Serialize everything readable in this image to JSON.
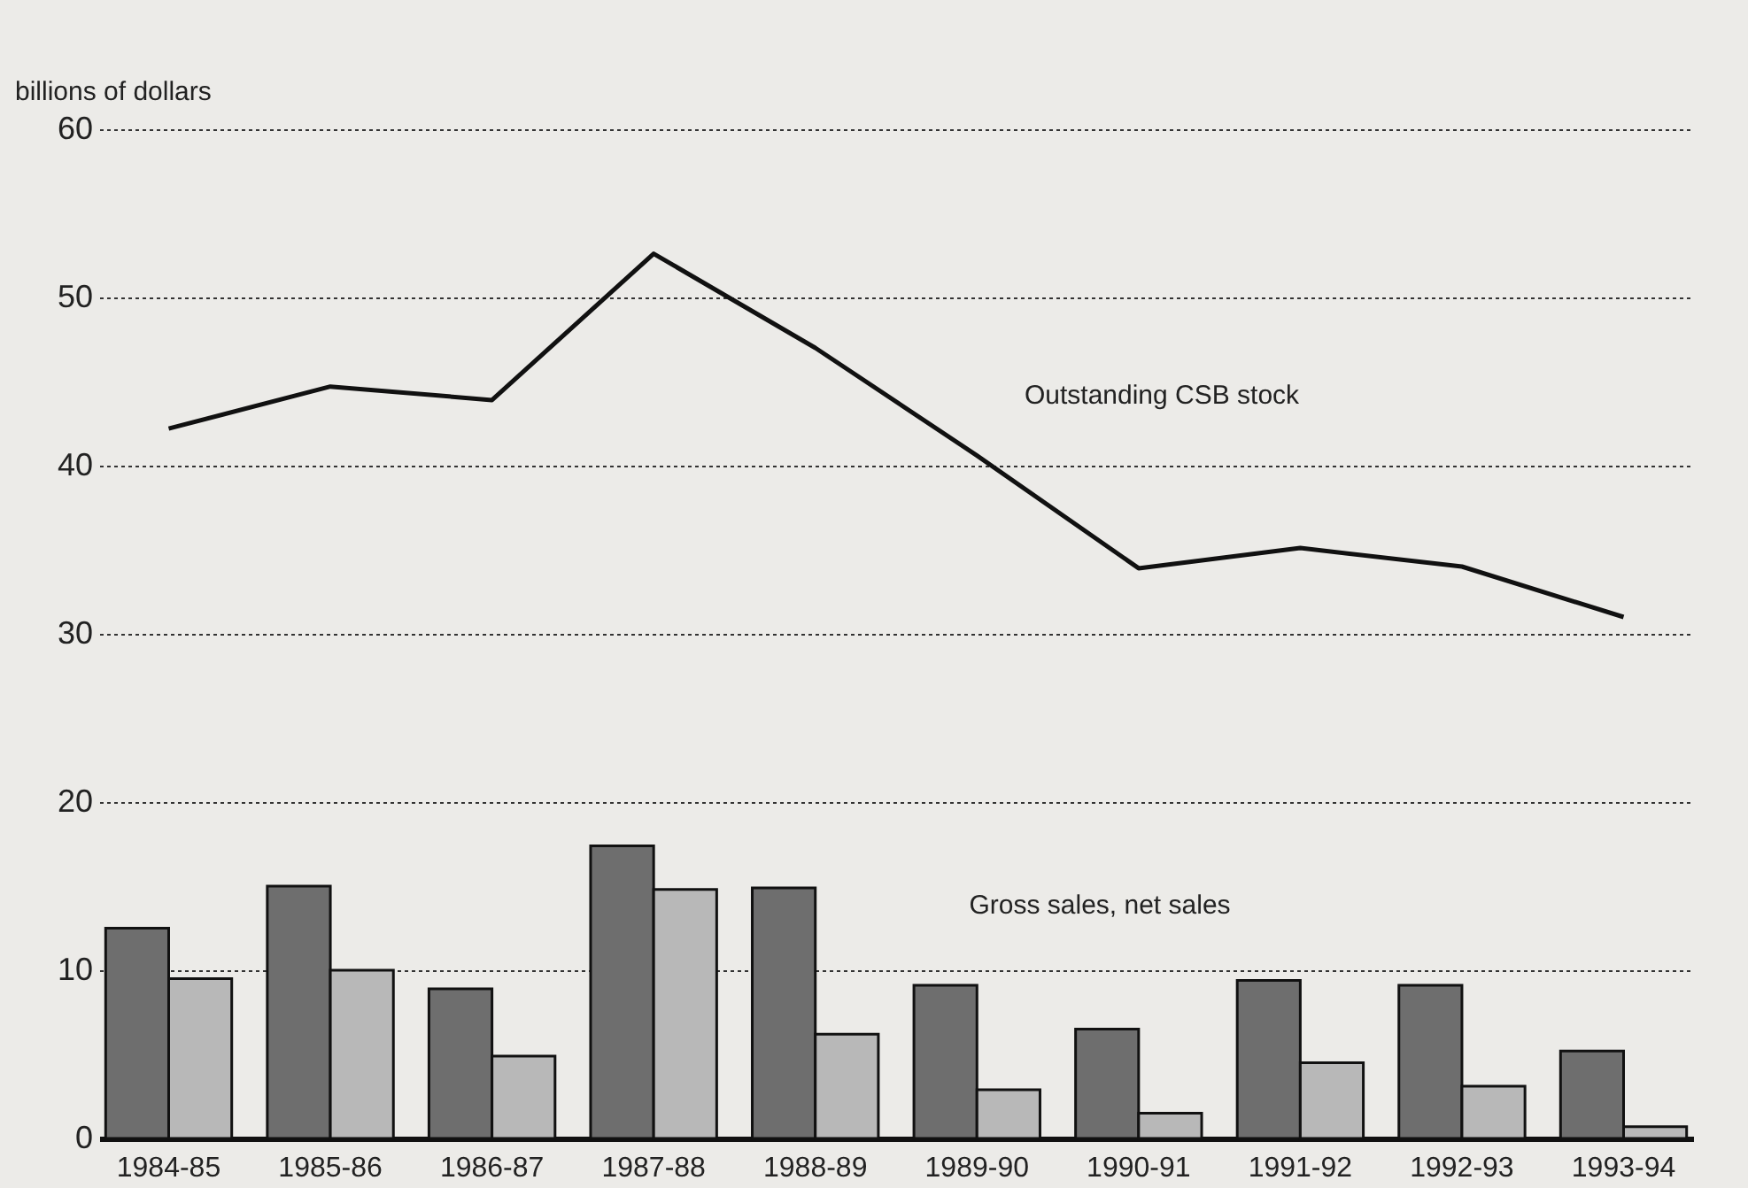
{
  "chart_data": {
    "type": "bar",
    "ylabel": "billions of dollars",
    "categories": [
      "1984-85",
      "1985-86",
      "1986-87",
      "1987-88",
      "1988-89",
      "1989-90",
      "1990-91",
      "1991-92",
      "1992-93",
      "1993-94"
    ],
    "series": [
      {
        "type": "line",
        "color": "#111111",
        "values": [
          42.2,
          44.7,
          43.9,
          52.6,
          47.0,
          40.6,
          33.9,
          35.1,
          34.0,
          31.0
        ]
      },
      {
        "color": "#6e6e6e",
        "values": [
          12.5,
          15.0,
          8.9,
          17.4,
          14.9,
          9.1,
          6.5,
          9.4,
          9.1,
          5.2
        ]
      },
      {
        "color": "#b8b8b8",
        "values": [
          9.5,
          10.0,
          4.9,
          14.8,
          6.2,
          2.9,
          1.5,
          4.5,
          3.1,
          0.7
        ]
      }
    ],
    "annotations": [
      "Outstanding CSB stock",
      "Gross sales, net sales"
    ],
    "ylim": [
      0,
      60
    ],
    "yticks": [
      0,
      10,
      20,
      30,
      40,
      50,
      60
    ],
    "grid": "y",
    "marker": "none",
    "line_style": "solid"
  }
}
